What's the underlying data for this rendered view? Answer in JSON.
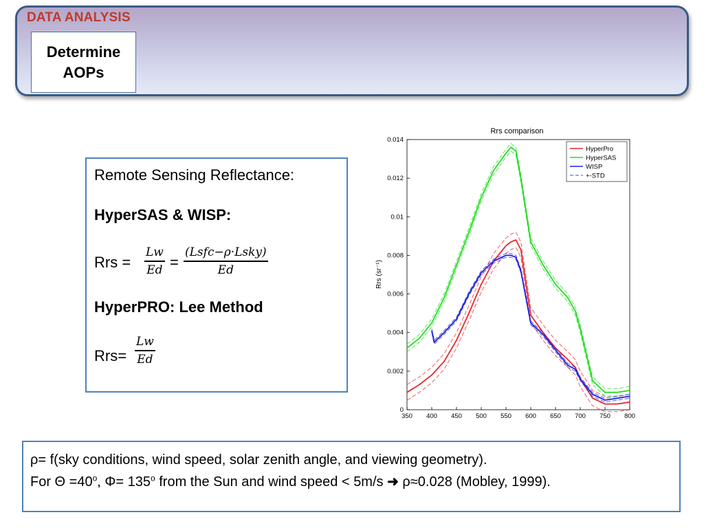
{
  "header": {
    "section": "DATA ANALYSIS",
    "title_line1": "Determine",
    "title_line2": "AOPs"
  },
  "content": {
    "intro": "Remote Sensing Reflectance:",
    "hypersas_heading": "HyperSAS & WISP:",
    "rrs_label1": "Rrs =",
    "frac1_num": "Lw",
    "frac1_den": "Ed",
    "equals": "=",
    "frac2_num": "(Lsfc−ρ·Lsky)",
    "frac2_den": "Ed",
    "hyperpro_heading": "HyperPRO: Lee Method",
    "rrs_label2": "Rrs=",
    "frac3_num": "Lw",
    "frac3_den": "Ed"
  },
  "notes": {
    "line1": "ρ= f(sky conditions, wind speed, solar zenith angle, and viewing geometry).",
    "line2_a": "For Θ =40",
    "line2_sup1": "o",
    "line2_b": ", Φ= 135",
    "line2_sup2": "o",
    "line2_c": " from the Sun and wind speed < 5m/s ",
    "arrow_icon": "arrow-right-icon",
    "line2_d": " ρ≈0.028 (Mobley, 1999)."
  },
  "chart_data": {
    "type": "line",
    "title": "Rrs comparison",
    "xlabel": "",
    "ylabel": "Rrs (sr⁻¹)",
    "xlim": [
      350,
      800
    ],
    "ylim": [
      0,
      0.014
    ],
    "xticks": [
      350,
      400,
      450,
      500,
      550,
      600,
      650,
      700,
      750,
      800
    ],
    "yticks": [
      0,
      0.002,
      0.004,
      0.006,
      0.008,
      0.01,
      0.012,
      0.014
    ],
    "ytick_labels": [
      "0",
      "0.002",
      "0.004",
      "0.006",
      "0.008",
      "0.01",
      "0.012",
      "0.014"
    ],
    "grid": false,
    "legend_position": "top-right",
    "legend": [
      "HyperPro",
      "HyperSAS",
      "WISP",
      "+-STD"
    ],
    "series": [
      {
        "name": "HyperPro",
        "color": "#e8262a",
        "std": 0.0004,
        "x": [
          350,
          375,
          400,
          425,
          450,
          475,
          500,
          525,
          550,
          560,
          570,
          580,
          600,
          625,
          650,
          675,
          690,
          700,
          725,
          750,
          775,
          800
        ],
        "y": [
          0.0009,
          0.0013,
          0.0018,
          0.0025,
          0.0036,
          0.005,
          0.0065,
          0.0077,
          0.0085,
          0.0087,
          0.0088,
          0.0083,
          0.0049,
          0.004,
          0.0032,
          0.0026,
          0.0022,
          0.0016,
          0.0006,
          0.0003,
          0.0003,
          0.0004
        ]
      },
      {
        "name": "HyperSAS",
        "color": "#22dd22",
        "std": 0.0002,
        "x": [
          350,
          375,
          400,
          425,
          450,
          475,
          500,
          525,
          550,
          560,
          570,
          580,
          600,
          625,
          650,
          675,
          690,
          700,
          725,
          750,
          775,
          800
        ],
        "y": [
          0.0032,
          0.0037,
          0.0045,
          0.0058,
          0.0075,
          0.0092,
          0.011,
          0.0124,
          0.0133,
          0.0136,
          0.0134,
          0.012,
          0.0087,
          0.0075,
          0.0065,
          0.0058,
          0.0051,
          0.0042,
          0.0015,
          0.0009,
          0.0009,
          0.001
        ]
      },
      {
        "name": "WISP",
        "color": "#2020e0",
        "std": 0.0001,
        "x": [
          400,
          405,
          425,
          450,
          475,
          500,
          525,
          550,
          560,
          570,
          580,
          600,
          625,
          650,
          675,
          690,
          700,
          725,
          750,
          775,
          800
        ],
        "y": [
          0.0041,
          0.0035,
          0.004,
          0.0047,
          0.006,
          0.0071,
          0.0077,
          0.008,
          0.008,
          0.0079,
          0.0072,
          0.0045,
          0.0039,
          0.0031,
          0.0023,
          0.0021,
          0.0016,
          0.0008,
          0.0005,
          0.0006,
          0.0007
        ]
      }
    ]
  }
}
